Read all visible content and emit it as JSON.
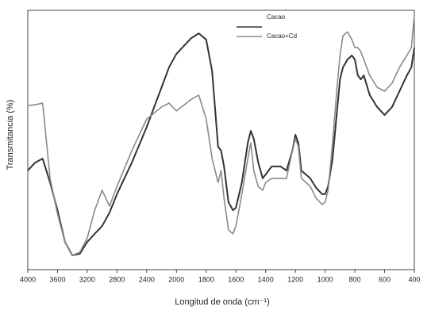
{
  "chart_data": {
    "type": "line",
    "xlabel": "Longitud de onda (cm⁻¹)",
    "ylabel": "Transmitancia (%)",
    "x": [
      4000,
      3900,
      3800,
      3700,
      3600,
      3500,
      3400,
      3300,
      3200,
      3100,
      3000,
      2900,
      2800,
      2600,
      2400,
      2200,
      2100,
      2000,
      1900,
      1850,
      1800,
      1760,
      1720,
      1700,
      1680,
      1650,
      1620,
      1600,
      1560,
      1520,
      1500,
      1480,
      1450,
      1420,
      1400,
      1360,
      1300,
      1260,
      1220,
      1200,
      1180,
      1160,
      1100,
      1060,
      1020,
      1000,
      980,
      950,
      920,
      900,
      880,
      850,
      820,
      800,
      780,
      760,
      740,
      700,
      650,
      600,
      550,
      500,
      450,
      420,
      400
    ],
    "series": [
      {
        "name": "Cacao",
        "color": "#333333",
        "values": [
          38.2,
          41.3,
          42.8,
          33.6,
          22.9,
          10.7,
          5.5,
          6.1,
          10.7,
          13.8,
          16.8,
          22.0,
          29.1,
          41.3,
          55.0,
          70.3,
          78.0,
          83.2,
          89.3,
          91.1,
          88.7,
          76.5,
          47.4,
          45.9,
          39.8,
          26.0,
          22.9,
          23.9,
          33.6,
          48.9,
          53.5,
          50.5,
          41.3,
          35.2,
          36.7,
          39.8,
          39.8,
          38.2,
          45.9,
          52.0,
          48.9,
          38.2,
          35.2,
          31.5,
          29.1,
          29.1,
          32.1,
          42.8,
          61.2,
          73.4,
          78.0,
          81.0,
          82.6,
          81.0,
          74.9,
          73.4,
          74.9,
          67.3,
          62.7,
          59.6,
          62.7,
          68.8,
          74.9,
          78.0,
          85.6
        ]
      },
      {
        "name": "Cacao+Cd",
        "color": "#8a8a8a",
        "values": [
          63.3,
          63.6,
          64.2,
          35.2,
          21.4,
          10.7,
          5.5,
          6.7,
          12.2,
          22.9,
          30.6,
          24.5,
          32.1,
          45.9,
          58.1,
          62.7,
          64.2,
          61.2,
          65.7,
          67.3,
          58.1,
          42.8,
          33.6,
          38.2,
          27.5,
          15.3,
          13.8,
          16.8,
          29.1,
          42.8,
          48.9,
          38.2,
          32.1,
          30.6,
          33.6,
          35.2,
          35.2,
          35.2,
          45.9,
          50.5,
          47.4,
          35.2,
          32.1,
          27.5,
          25.1,
          26.0,
          30.6,
          48.9,
          70.3,
          82.6,
          90.2,
          91.7,
          88.7,
          85.6,
          85.6,
          84.1,
          81.0,
          74.9,
          70.3,
          68.8,
          71.9,
          78.0,
          82.6,
          85.6,
          97.9
        ]
      }
    ],
    "xlim": [
      4000,
      400
    ],
    "xticks": [
      4000,
      3600,
      3200,
      2800,
      2400,
      2000,
      1800,
      1600,
      1400,
      1200,
      1000,
      800,
      600,
      400
    ],
    "ylim": [
      0,
      100
    ],
    "legend": "upper center"
  }
}
